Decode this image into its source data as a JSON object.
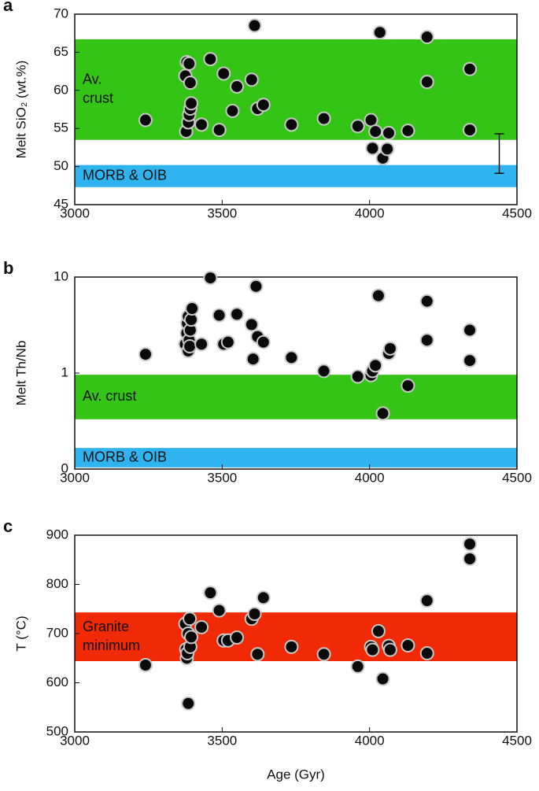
{
  "chart_data": [
    {
      "type": "scatter",
      "panel": "a",
      "ylabel": "Melt SiO₂ (wt.%)",
      "xlim": [
        3000,
        4500
      ],
      "xticks": [
        3000,
        3500,
        4000,
        4500
      ],
      "ylim": [
        45,
        70
      ],
      "yticks": [
        45,
        50,
        55,
        60,
        65,
        70
      ],
      "bands": [
        {
          "label": [
            "Av.",
            "crust"
          ],
          "range": [
            53.5,
            66.7
          ],
          "color": "#33c416"
        },
        {
          "label": [
            "MORB & OIB"
          ],
          "range": [
            47.3,
            50.2
          ],
          "color": "#30b4f0"
        }
      ],
      "error_bar": {
        "x": 4440,
        "range": [
          49.1,
          54.3
        ]
      },
      "x": [
        3240,
        3375,
        3380,
        3388,
        3392,
        3378,
        3385,
        3388,
        3392,
        3395,
        3430,
        3460,
        3490,
        3505,
        3535,
        3550,
        3600,
        3610,
        3620,
        3640,
        3735,
        3845,
        3960,
        4005,
        4010,
        4020,
        4035,
        4045,
        4060,
        4065,
        4130,
        4195,
        4195,
        4340,
        4340
      ],
      "values": [
        56.1,
        61.9,
        63.7,
        63.5,
        61.0,
        54.6,
        55.8,
        56.8,
        57.6,
        58.3,
        55.5,
        64.1,
        54.8,
        62.2,
        57.3,
        60.5,
        61.4,
        68.5,
        57.6,
        58.1,
        55.5,
        56.3,
        55.3,
        56.1,
        52.4,
        54.6,
        67.6,
        51.1,
        52.3,
        54.4,
        54.7,
        67.0,
        61.1,
        62.8,
        54.8
      ]
    },
    {
      "type": "scatter",
      "panel": "b",
      "ylabel": "Melt Th/Nb",
      "log_scale": true,
      "xlim": [
        3000,
        4500
      ],
      "xticks": [
        3000,
        3500,
        4000,
        4500
      ],
      "ylim": [
        0.1,
        10
      ],
      "yticks": [
        {
          "value": 0.1,
          "label": "0"
        },
        1,
        10
      ],
      "bands": [
        {
          "label": [
            "Av. crust"
          ],
          "range": [
            0.33,
            0.96
          ],
          "color": "#33c416"
        },
        {
          "label": [
            "MORB & OIB"
          ],
          "range": [
            0.104,
            0.166
          ],
          "color": "#30b4f0"
        }
      ],
      "x": [
        3240,
        3460,
        3375,
        3380,
        3382,
        3385,
        3385,
        3388,
        3390,
        3392,
        3395,
        3398,
        3430,
        3490,
        3505,
        3520,
        3550,
        3600,
        3605,
        3615,
        3620,
        3640,
        3735,
        3845,
        3960,
        4005,
        4010,
        4020,
        4030,
        4045,
        4065,
        4070,
        4130,
        4195,
        4195,
        4340,
        4340
      ],
      "values": [
        1.57,
        9.8,
        2.0,
        2.6,
        3.3,
        3.9,
        1.7,
        2.2,
        1.9,
        2.8,
        3.6,
        4.7,
        2.0,
        4.0,
        2.0,
        2.1,
        4.1,
        3.2,
        1.4,
        8.0,
        2.4,
        2.1,
        1.45,
        1.05,
        0.92,
        0.95,
        1.05,
        1.2,
        6.4,
        0.38,
        1.6,
        1.8,
        0.74,
        5.6,
        2.2,
        2.8,
        1.35
      ]
    },
    {
      "type": "scatter",
      "panel": "c",
      "ylabel": "T (°C)",
      "xlabel": "Age (Gyr)",
      "xlim": [
        3000,
        4500
      ],
      "xticks": [
        3000,
        3500,
        4000,
        4500
      ],
      "ylim": [
        500,
        900
      ],
      "yticks": [
        500,
        600,
        700,
        800,
        900
      ],
      "bands": [
        {
          "label": [
            "Granite",
            "minimum"
          ],
          "range": [
            644,
            743
          ],
          "color": "#f02a06"
        }
      ],
      "x": [
        3240,
        3375,
        3378,
        3380,
        3382,
        3385,
        3385,
        3390,
        3392,
        3395,
        3430,
        3460,
        3490,
        3505,
        3520,
        3550,
        3600,
        3610,
        3620,
        3640,
        3735,
        3845,
        3960,
        4005,
        4010,
        4030,
        4045,
        4065,
        4070,
        4130,
        4195,
        4195,
        4340,
        4340
      ],
      "values": [
        636,
        720,
        668,
        650,
        660,
        700,
        558,
        730,
        673,
        693,
        713,
        783,
        747,
        686,
        686,
        692,
        730,
        740,
        658,
        773,
        673,
        658,
        633,
        673,
        667,
        705,
        608,
        675,
        667,
        676,
        767,
        660,
        882,
        852
      ]
    }
  ]
}
